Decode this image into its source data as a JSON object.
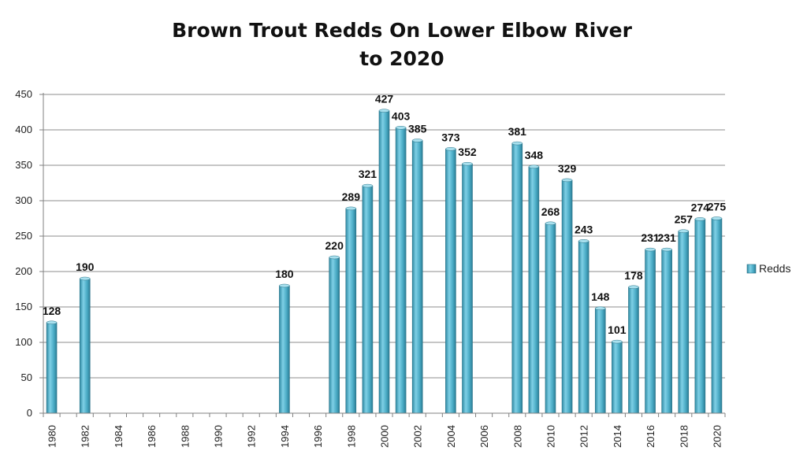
{
  "chart_data": {
    "type": "bar",
    "title_line1": "Brown Trout Redds On Lower Elbow River",
    "title_line2": "to 2020",
    "xlabel": "",
    "ylabel": "",
    "ylim": [
      0,
      450
    ],
    "y_ticks": [
      0,
      50,
      100,
      150,
      200,
      250,
      300,
      350,
      400,
      450
    ],
    "x_range": [
      1980,
      2020
    ],
    "x_tick_labels": [
      "1980",
      "1982",
      "1984",
      "1986",
      "1988",
      "1990",
      "1992",
      "1994",
      "1996",
      "1998",
      "2000",
      "2002",
      "2004",
      "2006",
      "2008",
      "2010",
      "2012",
      "2014",
      "2016",
      "2018",
      "2020"
    ],
    "grid": true,
    "legend_position": "right",
    "series": [
      {
        "name": "Redds",
        "color": "#4bacc6",
        "points": [
          {
            "x": 1980,
            "y": 128,
            "label": "128"
          },
          {
            "x": 1982,
            "y": 190,
            "label": "190"
          },
          {
            "x": 1994,
            "y": 180,
            "label": "180"
          },
          {
            "x": 1997,
            "y": 220,
            "label": "220"
          },
          {
            "x": 1998,
            "y": 289,
            "label": "289"
          },
          {
            "x": 1999,
            "y": 321,
            "label": "321"
          },
          {
            "x": 2000,
            "y": 427,
            "label": "427"
          },
          {
            "x": 2001,
            "y": 403,
            "label": "403"
          },
          {
            "x": 2002,
            "y": 385,
            "label": "385"
          },
          {
            "x": 2004,
            "y": 373,
            "label": "373"
          },
          {
            "x": 2005,
            "y": 352,
            "label": "352"
          },
          {
            "x": 2008,
            "y": 381,
            "label": "381"
          },
          {
            "x": 2009,
            "y": 348,
            "label": "348"
          },
          {
            "x": 2010,
            "y": 268,
            "label": "268"
          },
          {
            "x": 2011,
            "y": 329,
            "label": "329"
          },
          {
            "x": 2012,
            "y": 243,
            "label": "243"
          },
          {
            "x": 2013,
            "y": 148,
            "label": "148"
          },
          {
            "x": 2014,
            "y": 101,
            "label": "101"
          },
          {
            "x": 2015,
            "y": 178,
            "label": "178"
          },
          {
            "x": 2016,
            "y": 231,
            "label": "231"
          },
          {
            "x": 2017,
            "y": 231,
            "label": "231"
          },
          {
            "x": 2018,
            "y": 257,
            "label": "257"
          },
          {
            "x": 2019,
            "y": 274,
            "label": "274"
          },
          {
            "x": 2020,
            "y": 275,
            "label": "275"
          }
        ]
      }
    ]
  }
}
